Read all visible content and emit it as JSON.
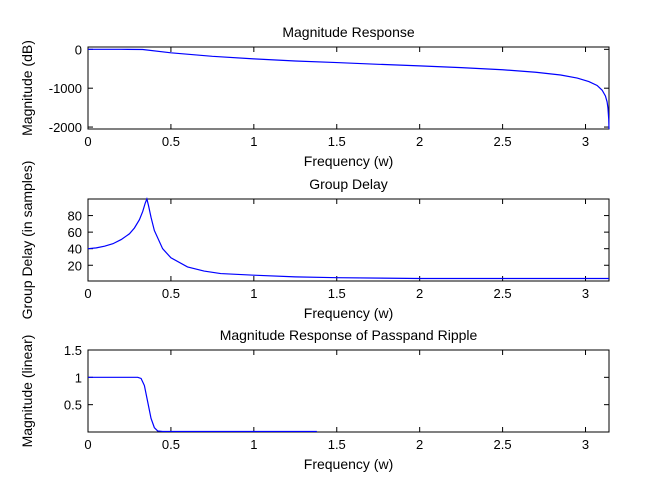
{
  "chart_data": [
    {
      "type": "line",
      "title": "Magnitude Response",
      "xlabel": "Frequency (w)",
      "ylabel": "Magnitude (dB)",
      "xlim": [
        0,
        3.1416
      ],
      "ylim": [
        -2050,
        60
      ],
      "xticks": [
        0,
        0.5,
        1,
        1.5,
        2,
        2.5,
        3
      ],
      "xtick_labels": [
        "0",
        "0.5",
        "1",
        "1.5",
        "2",
        "2.5",
        "3"
      ],
      "yticks": [
        -2000,
        -1000,
        0
      ],
      "ytick_labels": [
        "-2000",
        "-1000",
        "0"
      ],
      "grid": false,
      "series": [
        {
          "color": "#0000ff",
          "x": [
            0,
            0.2,
            0.33,
            0.5,
            0.75,
            1,
            1.25,
            1.5,
            1.75,
            2,
            2.25,
            2.5,
            2.7,
            2.85,
            2.95,
            3.02,
            3.07,
            3.1,
            3.12,
            3.13,
            3.135,
            3.14,
            3.1416
          ],
          "y": [
            0,
            0,
            -5,
            -90,
            -180,
            -245,
            -300,
            -340,
            -385,
            -425,
            -470,
            -525,
            -590,
            -660,
            -740,
            -830,
            -930,
            -1050,
            -1200,
            -1350,
            -1500,
            -1800,
            -2050
          ]
        }
      ]
    },
    {
      "type": "line",
      "title": "Group Delay",
      "xlabel": "Frequency (w)",
      "ylabel": "Group Delay (in samples)",
      "xlim": [
        0,
        3.1416
      ],
      "ylim": [
        1,
        100
      ],
      "xticks": [
        0,
        0.5,
        1,
        1.5,
        2,
        2.5,
        3
      ],
      "xtick_labels": [
        "0",
        "0.5",
        "1",
        "1.5",
        "2",
        "2.5",
        "3"
      ],
      "yticks": [
        20,
        40,
        60,
        80
      ],
      "ytick_labels": [
        "20",
        "40",
        "60",
        "80"
      ],
      "grid": false,
      "series": [
        {
          "color": "#0000ff",
          "x": [
            0,
            0.05,
            0.1,
            0.15,
            0.2,
            0.25,
            0.28,
            0.31,
            0.33,
            0.345,
            0.355,
            0.365,
            0.38,
            0.4,
            0.45,
            0.5,
            0.6,
            0.7,
            0.8,
            1,
            1.25,
            1.5,
            2,
            2.5,
            3,
            3.1416
          ],
          "y": [
            40,
            41,
            43,
            46,
            51,
            58,
            65,
            75,
            85,
            95,
            100,
            92,
            78,
            62,
            40,
            29,
            18,
            13,
            10,
            8,
            6,
            5,
            4,
            4,
            4,
            4
          ]
        }
      ]
    },
    {
      "type": "line",
      "title": "Magnitude Response of Passpand Ripple",
      "xlabel": "Frequency (w)",
      "ylabel": "Magnitude (linear)",
      "xlim": [
        0,
        3.1416
      ],
      "ylim": [
        0,
        1.5
      ],
      "xticks": [
        0,
        0.5,
        1,
        1.5,
        2,
        2.5,
        3
      ],
      "xtick_labels": [
        "0",
        "0.5",
        "1",
        "1.5",
        "2",
        "2.5",
        "3"
      ],
      "yticks": [
        0.5,
        1,
        1.5
      ],
      "ytick_labels": [
        "0.5",
        "1",
        "1.5"
      ],
      "grid": false,
      "series": [
        {
          "color": "#0000ff",
          "x": [
            0,
            0.3,
            0.32,
            0.34,
            0.36,
            0.38,
            0.4,
            0.42,
            0.45,
            0.5,
            1,
            1.38
          ],
          "y": [
            1,
            1,
            0.98,
            0.85,
            0.55,
            0.25,
            0.08,
            0.02,
            0.01,
            0.01,
            0.01,
            0.01
          ]
        }
      ]
    }
  ]
}
